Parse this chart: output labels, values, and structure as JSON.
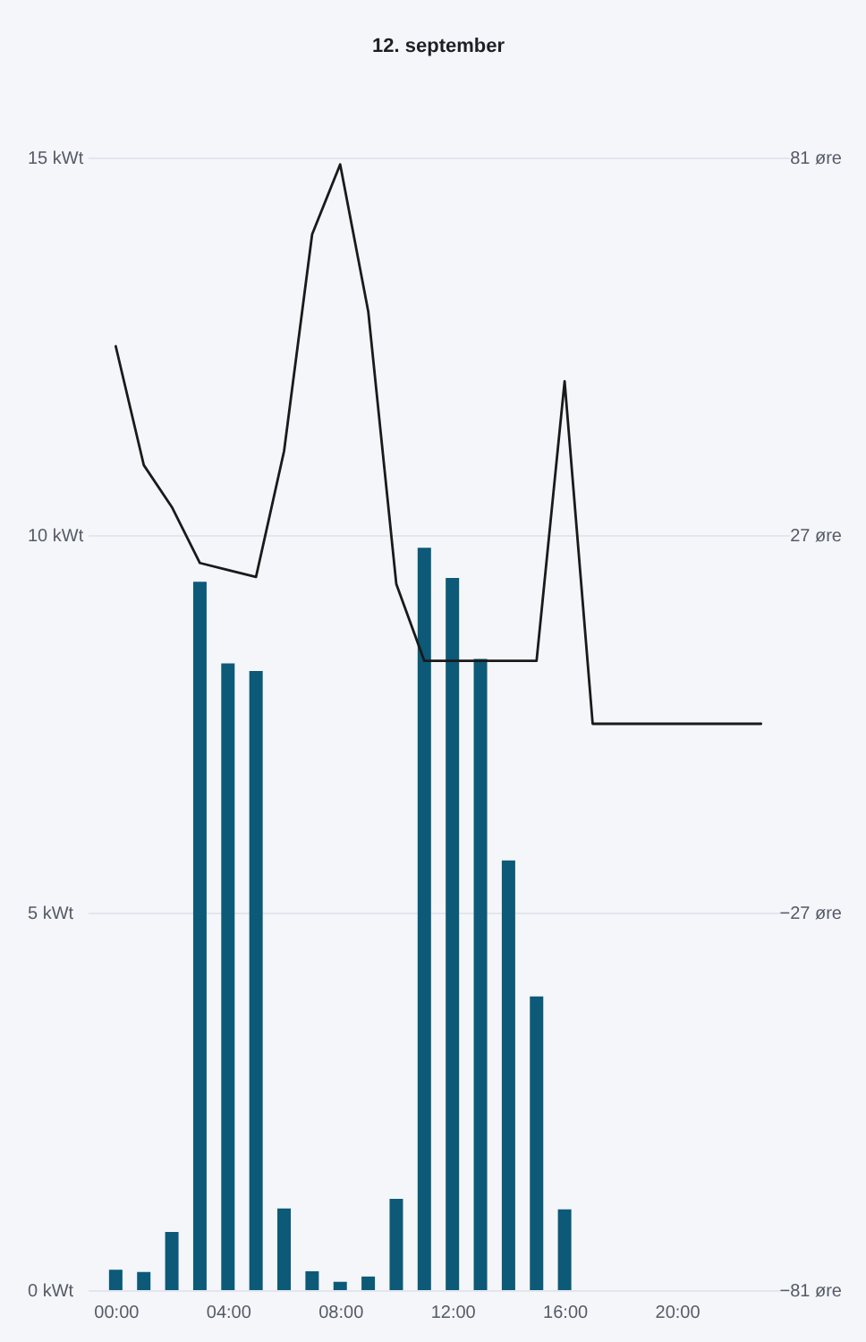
{
  "chart_data": {
    "type": "bar",
    "title": "12. september",
    "x": [
      0,
      1,
      2,
      3,
      4,
      5,
      6,
      7,
      8,
      9,
      10,
      11,
      12,
      13,
      14,
      15,
      16,
      17,
      18,
      19,
      20,
      21,
      22,
      23
    ],
    "xlim": [
      -1,
      24
    ],
    "xticks": [
      {
        "value": 0,
        "label": "00:00"
      },
      {
        "value": 4,
        "label": "04:00"
      },
      {
        "value": 8,
        "label": "08:00"
      },
      {
        "value": 12,
        "label": "12:00"
      },
      {
        "value": 16,
        "label": "16:00"
      },
      {
        "value": 20,
        "label": "20:00"
      }
    ],
    "ylim": [
      0,
      15
    ],
    "yticks": [
      {
        "value": 0,
        "label": "0 kWt"
      },
      {
        "value": 5,
        "label": "5 kWt"
      },
      {
        "value": 10,
        "label": "10 kWt"
      },
      {
        "value": 15,
        "label": "15 kWt"
      }
    ],
    "y2lim": [
      -81,
      81
    ],
    "y2ticks": [
      {
        "value": -81,
        "label": "−81 øre"
      },
      {
        "value": -27,
        "label": "−27 øre"
      },
      {
        "value": 27,
        "label": "27 øre"
      },
      {
        "value": 81,
        "label": "81 øre"
      }
    ],
    "grid": "y",
    "series": [
      {
        "color": "#0c5a78",
        "values": [
          0.27,
          0.24,
          0.77,
          9.38,
          8.3,
          8.2,
          1.08,
          0.25,
          0.11,
          0.18,
          1.21,
          9.83,
          9.43,
          8.36,
          5.69,
          3.89,
          1.07,
          null,
          null,
          null,
          null,
          null,
          null,
          null
        ]
      },
      {
        "type": "line",
        "axis": "y2",
        "color": "#1a1a1a",
        "line_style": "solid",
        "marker": "none",
        "values": [
          54,
          37,
          31,
          23,
          22,
          21,
          39,
          70,
          80,
          59,
          20,
          9,
          9,
          9,
          9,
          9,
          49,
          0,
          0,
          0,
          0,
          0,
          0,
          0
        ]
      }
    ]
  }
}
